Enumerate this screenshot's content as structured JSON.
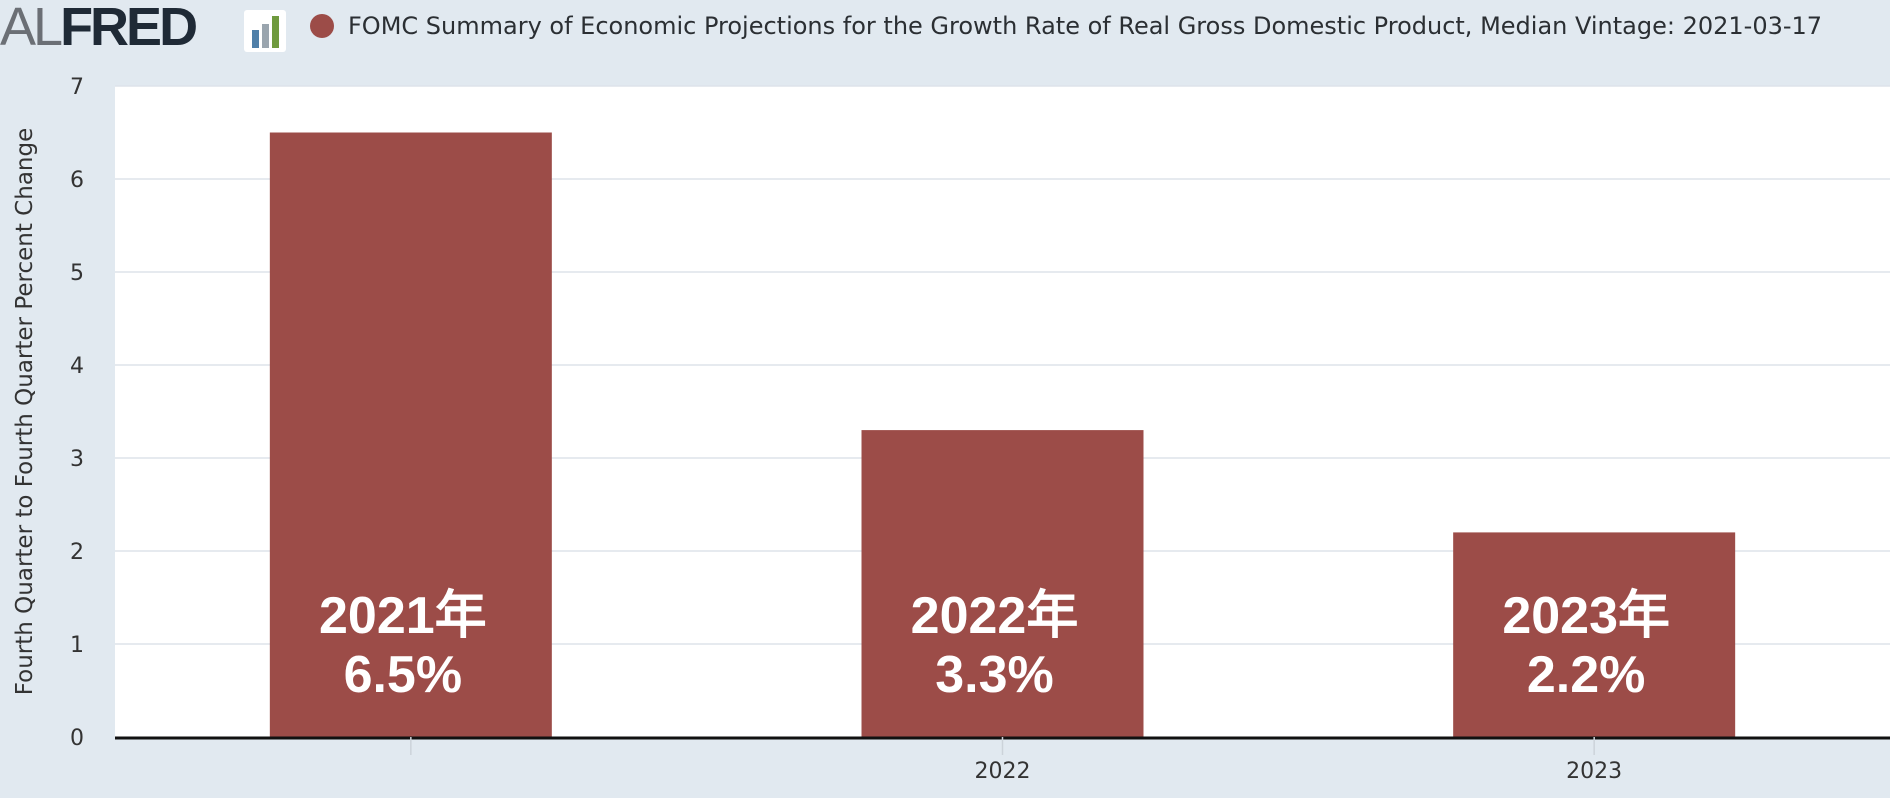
{
  "header": {
    "logo_prefix": "AL",
    "logo_main": "FRED",
    "logo_icon": "fred-bar-chart-icon",
    "legend_label": "FOMC Summary of Economic Projections for the Growth Rate of Real Gross Domestic Product, Median Vintage: 2021-03-17"
  },
  "colors": {
    "bar": "#9c4c48",
    "background": "#e1e9f0",
    "plot": "#ffffff",
    "grid": "#dde3ea"
  },
  "chart_data": {
    "type": "bar",
    "title": "FOMC Summary of Economic Projections for the Growth Rate of Real Gross Domestic Product, Median Vintage: 2021-03-17",
    "ylabel": "Fourth Quarter to Fourth Quarter Percent Change",
    "xlabel": "",
    "ylim": [
      0,
      7
    ],
    "yticks": [
      0,
      1,
      2,
      3,
      4,
      5,
      6,
      7
    ],
    "grid": true,
    "categories": [
      "2021",
      "2022",
      "2023"
    ],
    "x_tick_labels": [
      "",
      "2022",
      "2023"
    ],
    "values": [
      6.5,
      3.3,
      2.2
    ],
    "annotations": [
      {
        "year_label": "2021年",
        "value_label": "6.5%"
      },
      {
        "year_label": "2022年",
        "value_label": "3.3%"
      },
      {
        "year_label": "2023年",
        "value_label": "2.2%"
      }
    ]
  }
}
